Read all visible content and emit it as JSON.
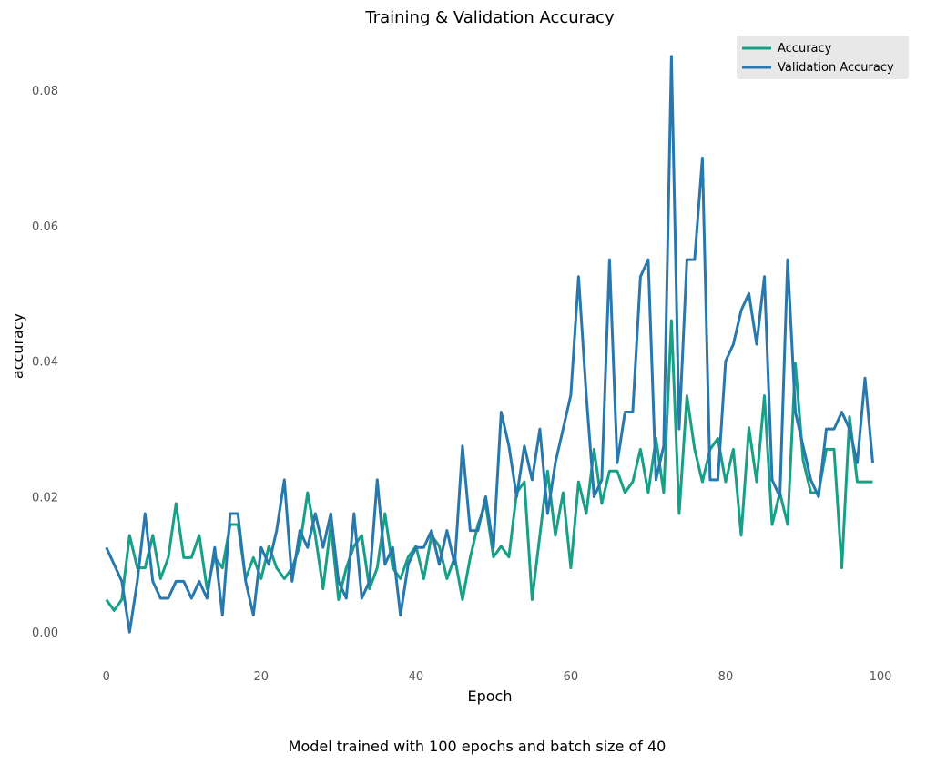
{
  "chart_data": {
    "type": "line",
    "title": "Training & Validation Accuracy",
    "xlabel": "Epoch",
    "ylabel": "accuracy",
    "caption": "Model trained with 100 epochs and batch size of 40",
    "xlim": [
      -1.5,
      102
    ],
    "ylim": [
      -0.004,
      0.087
    ],
    "xticks": [
      0,
      20,
      40,
      60,
      80,
      100
    ],
    "yticks": [
      0.0,
      0.02,
      0.04,
      0.06,
      0.08
    ],
    "ytick_labels": [
      "0.00",
      "0.02",
      "0.04",
      "0.06",
      "0.08"
    ],
    "grid": false,
    "legend_position": "top-right",
    "legend_bg": "#e8e8e8",
    "series": [
      {
        "name": "Accuracy",
        "color": "#17a085",
        "x": [
          0,
          1,
          2,
          3,
          4,
          5,
          6,
          7,
          8,
          9,
          10,
          11,
          12,
          13,
          14,
          15,
          16,
          17,
          18,
          19,
          20,
          21,
          22,
          23,
          24,
          25,
          26,
          27,
          28,
          29,
          30,
          31,
          32,
          33,
          34,
          35,
          36,
          37,
          38,
          39,
          40,
          41,
          42,
          43,
          44,
          45,
          46,
          47,
          48,
          49,
          50,
          51,
          52,
          53,
          54,
          55,
          56,
          57,
          58,
          59,
          60,
          61,
          62,
          63,
          64,
          65,
          66,
          67,
          68,
          69,
          70,
          71,
          72,
          73,
          74,
          75,
          76,
          77,
          78,
          79,
          80,
          81,
          82,
          83,
          84,
          85,
          86,
          87,
          88,
          89,
          90,
          91,
          92,
          93,
          94,
          95,
          96,
          97,
          98,
          99
        ],
        "values": [
          0.0048,
          0.0032,
          0.0048,
          0.0143,
          0.0095,
          0.0095,
          0.0143,
          0.0079,
          0.011,
          0.019,
          0.011,
          0.011,
          0.0143,
          0.0064,
          0.0111,
          0.0095,
          0.0159,
          0.0159,
          0.0079,
          0.011,
          0.0079,
          0.0127,
          0.0095,
          0.0079,
          0.0095,
          0.0127,
          0.0206,
          0.0143,
          0.0064,
          0.0159,
          0.0048,
          0.0095,
          0.0127,
          0.0143,
          0.0064,
          0.0095,
          0.0175,
          0.0095,
          0.0079,
          0.0111,
          0.0127,
          0.0079,
          0.0143,
          0.0127,
          0.0079,
          0.0111,
          0.0048,
          0.011,
          0.0159,
          0.019,
          0.0111,
          0.0127,
          0.0111,
          0.0206,
          0.0222,
          0.0048,
          0.0143,
          0.0238,
          0.0143,
          0.0206,
          0.0095,
          0.0222,
          0.0175,
          0.027,
          0.019,
          0.0238,
          0.0238,
          0.0206,
          0.0222,
          0.027,
          0.0206,
          0.0286,
          0.0206,
          0.046,
          0.0175,
          0.0349,
          0.027,
          0.0222,
          0.027,
          0.0286,
          0.0222,
          0.027,
          0.0143,
          0.0302,
          0.0222,
          0.0349,
          0.0159,
          0.0206,
          0.0159,
          0.0397,
          0.0254,
          0.0206,
          0.0206,
          0.027,
          0.027,
          0.0095,
          0.0318,
          0.0222,
          0.0222,
          0.0222
        ]
      },
      {
        "name": "Validation Accuracy",
        "color": "#2878b0",
        "x": [
          0,
          1,
          2,
          3,
          4,
          5,
          6,
          7,
          8,
          9,
          10,
          11,
          12,
          13,
          14,
          15,
          16,
          17,
          18,
          19,
          20,
          21,
          22,
          23,
          24,
          25,
          26,
          27,
          28,
          29,
          30,
          31,
          32,
          33,
          34,
          35,
          36,
          37,
          38,
          39,
          40,
          41,
          42,
          43,
          44,
          45,
          46,
          47,
          48,
          49,
          50,
          51,
          52,
          53,
          54,
          55,
          56,
          57,
          58,
          59,
          60,
          61,
          62,
          63,
          64,
          65,
          66,
          67,
          68,
          69,
          70,
          71,
          72,
          73,
          74,
          75,
          76,
          77,
          78,
          79,
          80,
          81,
          82,
          83,
          84,
          85,
          86,
          87,
          88,
          89,
          90,
          91,
          92,
          93,
          94,
          95,
          96,
          97,
          98,
          99
        ],
        "values": [
          0.0125,
          0.01,
          0.0075,
          0.0,
          0.0075,
          0.0175,
          0.0075,
          0.005,
          0.005,
          0.0075,
          0.0075,
          0.005,
          0.0075,
          0.005,
          0.0125,
          0.0025,
          0.0175,
          0.0175,
          0.0075,
          0.0025,
          0.0125,
          0.01,
          0.015,
          0.0225,
          0.0075,
          0.015,
          0.0125,
          0.0175,
          0.0125,
          0.0175,
          0.0075,
          0.005,
          0.0175,
          0.005,
          0.0075,
          0.0225,
          0.01,
          0.0125,
          0.0025,
          0.01,
          0.0125,
          0.0125,
          0.015,
          0.01,
          0.015,
          0.01,
          0.0275,
          0.015,
          0.015,
          0.02,
          0.0125,
          0.0325,
          0.0275,
          0.02,
          0.0275,
          0.0225,
          0.03,
          0.0175,
          0.025,
          0.03,
          0.035,
          0.0525,
          0.035,
          0.02,
          0.0225,
          0.055,
          0.025,
          0.0325,
          0.0325,
          0.0525,
          0.055,
          0.0225,
          0.0275,
          0.085,
          0.03,
          0.055,
          0.055,
          0.07,
          0.0225,
          0.0225,
          0.04,
          0.0425,
          0.0475,
          0.05,
          0.0425,
          0.0525,
          0.0225,
          0.02,
          0.055,
          0.0325,
          0.0275,
          0.0225,
          0.02,
          0.03,
          0.03,
          0.0325,
          0.03,
          0.025,
          0.0375,
          0.025
        ]
      }
    ]
  }
}
